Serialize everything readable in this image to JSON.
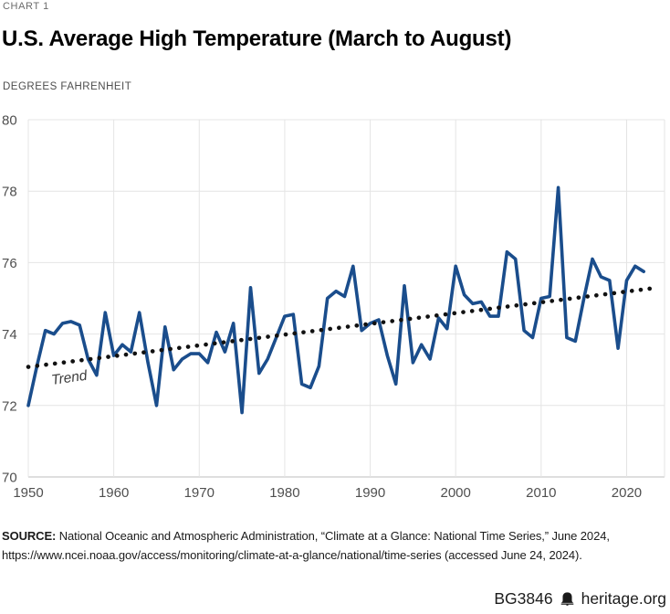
{
  "header": {
    "kicker": "CHART 1",
    "title": "U.S. Average High Temperature (March to August)",
    "units": "DEGREES FAHRENHEIT"
  },
  "chart_data": {
    "type": "line",
    "title": "U.S. Average High Temperature (March to August)",
    "ylabel": "DEGREES FAHRENHEIT",
    "ylim": [
      70,
      80
    ],
    "xlim": [
      1950,
      2024.5
    ],
    "y_ticks": [
      70,
      72,
      74,
      76,
      78,
      80
    ],
    "x_ticks": [
      1950,
      1960,
      1970,
      1980,
      1990,
      2000,
      2010,
      2020
    ],
    "grid": true,
    "legend_position": "none",
    "line_color": "#1A4D8C",
    "trend_color": "#111111",
    "tick_label_color": "#4f4f4f",
    "grid_color": "#e4e4e4",
    "axis_color": "#bdbdbd",
    "trend": {
      "label": "Trend",
      "start_year": 1950,
      "start_value": 73.08,
      "end_year": 2023,
      "end_value": 75.28,
      "style": "dotted"
    },
    "series": [
      {
        "name": "U.S. average high temperature (March to August), degrees Fahrenheit",
        "x": [
          1950,
          1951,
          1952,
          1953,
          1954,
          1955,
          1956,
          1957,
          1958,
          1959,
          1960,
          1961,
          1962,
          1963,
          1964,
          1965,
          1966,
          1967,
          1968,
          1969,
          1970,
          1971,
          1972,
          1973,
          1974,
          1975,
          1976,
          1977,
          1978,
          1979,
          1980,
          1981,
          1982,
          1983,
          1984,
          1985,
          1986,
          1987,
          1988,
          1989,
          1990,
          1991,
          1992,
          1993,
          1994,
          1995,
          1996,
          1997,
          1998,
          1999,
          2000,
          2001,
          2002,
          2003,
          2004,
          2005,
          2006,
          2007,
          2008,
          2009,
          2010,
          2011,
          2012,
          2013,
          2014,
          2015,
          2016,
          2017,
          2018,
          2019,
          2020,
          2021,
          2022
        ],
        "values": [
          72.0,
          73.1,
          74.1,
          74.0,
          74.3,
          74.35,
          74.25,
          73.3,
          72.85,
          74.6,
          73.4,
          73.7,
          73.5,
          74.6,
          73.2,
          72.0,
          74.2,
          73.0,
          73.3,
          73.45,
          73.45,
          73.2,
          74.05,
          73.5,
          74.3,
          71.8,
          75.3,
          72.9,
          73.3,
          73.9,
          74.5,
          74.55,
          72.6,
          72.5,
          73.1,
          75.0,
          75.2,
          75.05,
          75.9,
          74.1,
          74.3,
          74.4,
          73.4,
          72.6,
          75.35,
          73.2,
          73.7,
          73.3,
          74.45,
          74.15,
          75.9,
          75.1,
          74.85,
          74.9,
          74.5,
          74.5,
          76.3,
          76.1,
          74.1,
          73.9,
          75.0,
          75.05,
          78.1,
          73.9,
          73.8,
          75.0,
          76.1,
          75.6,
          75.5,
          73.6,
          75.5,
          75.9,
          75.75
        ]
      }
    ]
  },
  "source": {
    "label": "SOURCE:",
    "line1": "National Oceanic and Atmospheric Administration, “Climate at a Glance: National Time Series,” June 2024,",
    "line2": "https://www.ncei.noaa.gov/access/monitoring/climate-at-a-glance/national/time-series (accessed June 24, 2024)."
  },
  "footer": {
    "report_id": "BG3846",
    "brand": "heritage.org"
  }
}
